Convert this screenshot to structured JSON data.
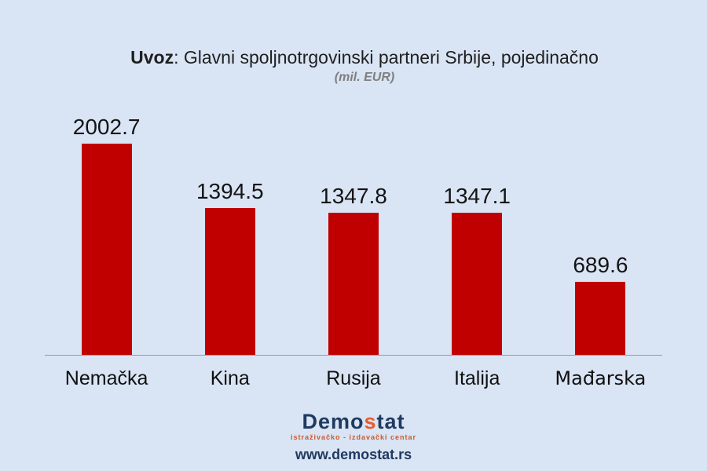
{
  "header": {
    "title_prefix": "Uvoz",
    "title_rest": ": Glavni spoljnotrgovinski partneri Srbije, pojedinačno",
    "subtitle": "(mil. EUR)"
  },
  "chart_data": {
    "type": "bar",
    "title": "Uvoz: Glavni spoljnotrgovinski partneri Srbije, pojedinačno",
    "subtitle": "(mil. EUR)",
    "categories": [
      "Nemačka",
      "Kina",
      "Rusija",
      "Italija",
      "Mađarska"
    ],
    "values": [
      2002.7,
      1394.5,
      1347.8,
      1347.1,
      689.6
    ],
    "xlabel": "",
    "ylabel": "",
    "ylim": [
      0,
      2400
    ],
    "grid": false,
    "legend": false,
    "data_labels": true,
    "bar_color": "#c00000",
    "value_label_color": "#141414",
    "axis_line_color": "#9a9a9a",
    "background_color": "#d9e4f4",
    "emphasized_categories": [
      "Mađarska"
    ]
  },
  "footer": {
    "logo_prefix": "Demo",
    "logo_accent": "s",
    "logo_suffix": "tat",
    "tagline": "istraživačko - izdavački  centar",
    "website": "www.demostat.rs",
    "logo_color": "#203a60",
    "accent_color": "#e65c2d",
    "tagline_color": "#cc5a2e"
  }
}
